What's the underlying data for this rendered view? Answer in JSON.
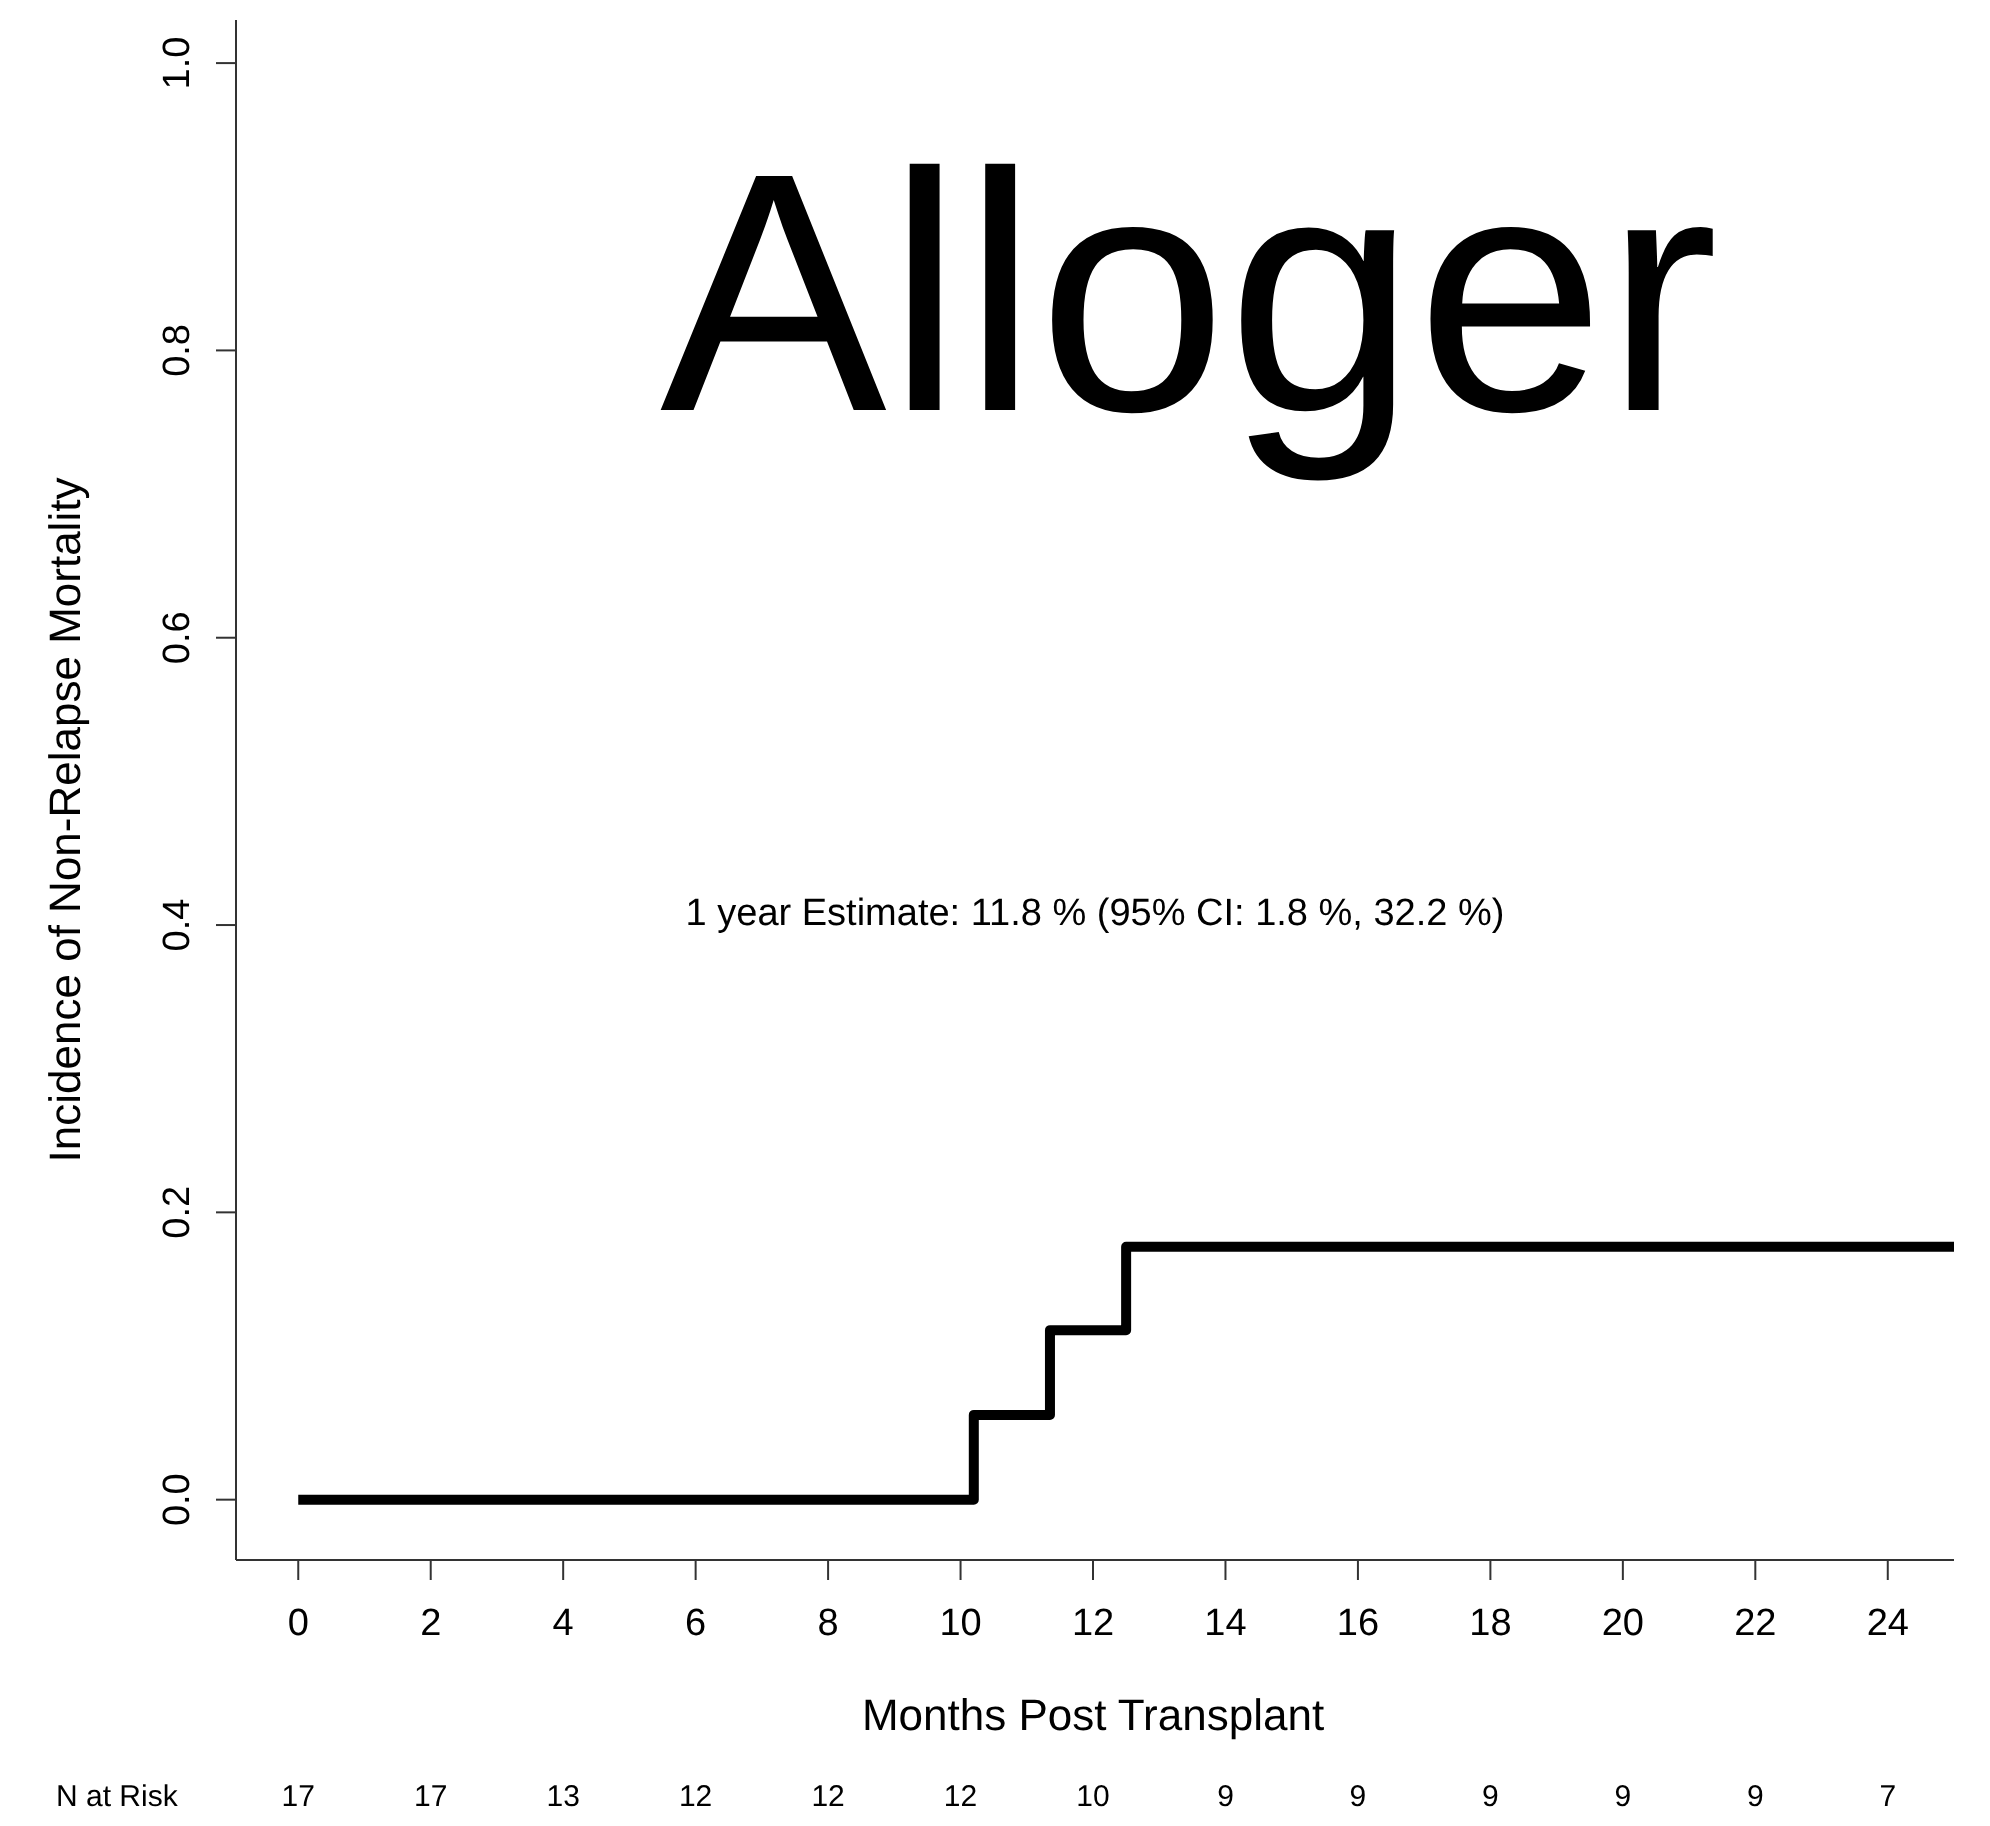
{
  "chart_data": {
    "type": "step",
    "title": "Alloger",
    "ylabel": "Incidence of Non-Relapse Mortality",
    "xlabel": "Months Post Transplant",
    "x": [
      0,
      10.2,
      11.35,
      12.5,
      25
    ],
    "series": [
      {
        "color": "#000000",
        "values": [
          0,
          0.059,
          0.118,
          0.176,
          0.176
        ]
      }
    ],
    "xlim": [
      -0.94,
      25
    ],
    "xticks": [
      0,
      2,
      4,
      6,
      8,
      10,
      12,
      14,
      16,
      18,
      20,
      22,
      24
    ],
    "ylim": [
      -0.042,
      1.03
    ],
    "yticks": [
      {
        "value": 0,
        "label": "0.0"
      },
      {
        "value": 0.2,
        "label": "0.2"
      },
      {
        "value": 0.4,
        "label": "0.4"
      },
      {
        "value": 0.6,
        "label": "0.6"
      },
      {
        "value": 0.8,
        "label": "0.8"
      },
      {
        "value": 1,
        "label": "1.0"
      }
    ],
    "annotations": [
      "1 year Estimate: 11.8 % (95% CI: 1.8 %, 32.2 %)",
      "N at Risk",
      "17",
      "17",
      "13",
      "12",
      "12",
      "12",
      "10",
      "9",
      "9",
      "9",
      "9",
      "9",
      "7"
    ],
    "grid": false,
    "marker": "none",
    "line_style": "solid"
  }
}
